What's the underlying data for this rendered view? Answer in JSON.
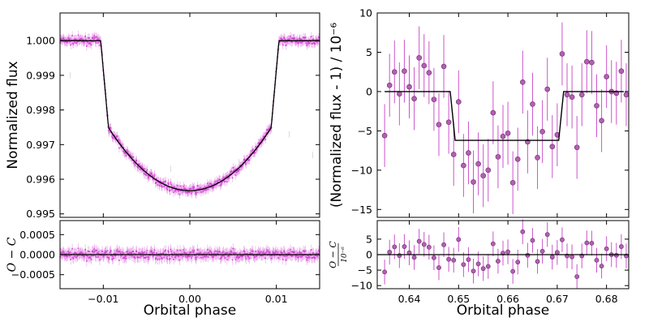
{
  "chart_data": [
    {
      "type": "scatter",
      "panel": "left-top",
      "xlim": [
        -0.015,
        0.015
      ],
      "ylim": [
        0.9949,
        1.0008
      ],
      "x_ticks": [
        -0.01,
        0.0,
        0.01
      ],
      "x_tick_labels": [
        "−0.01",
        "0.00",
        "0.01"
      ],
      "y_ticks": [
        0.995,
        0.996,
        0.997,
        0.998,
        0.999,
        1.0
      ],
      "y_tick_labels": [
        "0.995",
        "0.996",
        "0.997",
        "0.998",
        "0.999",
        "1.000"
      ],
      "xlabel": "",
      "ylabel": "Normalized flux",
      "grid": false,
      "model": {
        "baseline": 1.0,
        "depth": 0.00433,
        "t_ingress_start": 0.0103,
        "t_flat_start": 0.0094
      },
      "data_color": "#cc33cc",
      "model_color": "#000000"
    },
    {
      "type": "scatter",
      "panel": "left-bottom",
      "xlim": [
        -0.015,
        0.015
      ],
      "ylim": [
        -0.00085,
        0.00085
      ],
      "x_ticks": [
        -0.01,
        0.0,
        0.01
      ],
      "x_tick_labels": [
        "−0.01",
        "0.00",
        "0.01"
      ],
      "y_ticks": [
        -0.0005,
        0.0,
        0.0005
      ],
      "y_tick_labels": [
        "−0.0005",
        "0.0000",
        "0.0005"
      ],
      "xlabel": "Orbital phase",
      "ylabel": "O − C",
      "grid": false
    },
    {
      "type": "scatter",
      "panel": "right-top",
      "xlim": [
        0.6335,
        0.6845
      ],
      "ylim": [
        -16,
        10
      ],
      "x_ticks": [
        0.64,
        0.65,
        0.66,
        0.67,
        0.68
      ],
      "x_tick_labels": [
        "0.64",
        "0.65",
        "0.66",
        "0.67",
        "0.68"
      ],
      "y_ticks": [
        10,
        5,
        0,
        -5,
        -10,
        -15
      ],
      "y_tick_labels": [
        "10",
        "5",
        "0",
        "−5",
        "−10",
        "−15"
      ],
      "ylabel": "(Normalized flux - 1) / 10⁻⁶",
      "grid": false,
      "model": {
        "x": [
          0.635,
          0.6483,
          0.6493,
          0.6703,
          0.6713,
          0.6835
        ],
        "y": [
          0,
          0,
          -6.2,
          -6.2,
          0,
          0
        ]
      },
      "x": [
        0.635,
        0.636,
        0.637,
        0.638,
        0.639,
        0.64,
        0.641,
        0.642,
        0.643,
        0.644,
        0.645,
        0.646,
        0.647,
        0.648,
        0.649,
        0.65,
        0.651,
        0.652,
        0.653,
        0.654,
        0.655,
        0.656,
        0.657,
        0.658,
        0.659,
        0.66,
        0.661,
        0.662,
        0.663,
        0.664,
        0.665,
        0.666,
        0.667,
        0.668,
        0.669,
        0.67,
        0.671,
        0.672,
        0.673,
        0.674,
        0.675,
        0.676,
        0.677,
        0.678,
        0.679,
        0.68,
        0.681,
        0.682,
        0.683,
        0.684
      ],
      "y": [
        -5.6,
        0.8,
        2.5,
        -0.3,
        2.6,
        0.6,
        -0.9,
        4.3,
        3.3,
        2.4,
        -1.0,
        -4.2,
        3.2,
        -3.9,
        -8.0,
        -1.3,
        -9.4,
        -7.8,
        -11.5,
        -9.2,
        -10.7,
        -10.0,
        -2.7,
        -8.3,
        -5.7,
        -5.3,
        -11.6,
        -8.6,
        1.2,
        -6.4,
        -1.6,
        -8.4,
        -5.1,
        0.3,
        -7.0,
        -5.5,
        4.8,
        -0.4,
        -0.7,
        -7.1,
        -0.4,
        3.8,
        3.7,
        -1.8,
        -3.7,
        1.9,
        0.0,
        -0.2,
        2.6,
        -0.4
      ],
      "yerr": 4.0,
      "data_color": "#cc55cc",
      "model_color": "#000000"
    },
    {
      "type": "scatter",
      "panel": "right-bottom",
      "xlim": [
        0.6335,
        0.6845
      ],
      "ylim": [
        -11,
        11
      ],
      "x_ticks": [
        0.64,
        0.65,
        0.66,
        0.67,
        0.68
      ],
      "x_tick_labels": [
        "0.64",
        "0.65",
        "0.66",
        "0.67",
        "0.68"
      ],
      "y_ticks": [
        5,
        0,
        -5,
        -10
      ],
      "y_tick_labels": [
        "5",
        "0",
        "−5",
        "−10"
      ],
      "xlabel": "Orbital phase",
      "ylabel": "O − C",
      "ylabel_denominator": "10⁻⁶",
      "grid": false,
      "x": [
        0.635,
        0.636,
        0.637,
        0.638,
        0.639,
        0.64,
        0.641,
        0.642,
        0.643,
        0.644,
        0.645,
        0.646,
        0.647,
        0.648,
        0.649,
        0.65,
        0.651,
        0.652,
        0.653,
        0.654,
        0.655,
        0.656,
        0.657,
        0.658,
        0.659,
        0.66,
        0.661,
        0.662,
        0.663,
        0.664,
        0.665,
        0.666,
        0.667,
        0.668,
        0.669,
        0.67,
        0.671,
        0.672,
        0.673,
        0.674,
        0.675,
        0.676,
        0.677,
        0.678,
        0.679,
        0.68,
        0.681,
        0.682,
        0.683,
        0.684
      ],
      "y": [
        -5.6,
        0.8,
        2.5,
        -0.3,
        2.6,
        0.6,
        -0.9,
        4.3,
        3.3,
        2.4,
        -1.0,
        -4.2,
        3.2,
        -1.5,
        -1.8,
        4.9,
        -3.2,
        -1.6,
        -5.3,
        -3.0,
        -4.5,
        -3.8,
        3.5,
        -2.1,
        0.5,
        0.9,
        -5.4,
        -2.4,
        7.4,
        -0.2,
        4.6,
        -2.2,
        1.1,
        6.5,
        -0.8,
        0.7,
        4.8,
        -0.4,
        -0.7,
        -7.1,
        -0.4,
        3.8,
        3.7,
        -1.8,
        -3.7,
        1.9,
        0.0,
        -0.2,
        2.6,
        -0.4
      ],
      "yerr": 4.0,
      "data_color": "#cc55cc"
    }
  ]
}
